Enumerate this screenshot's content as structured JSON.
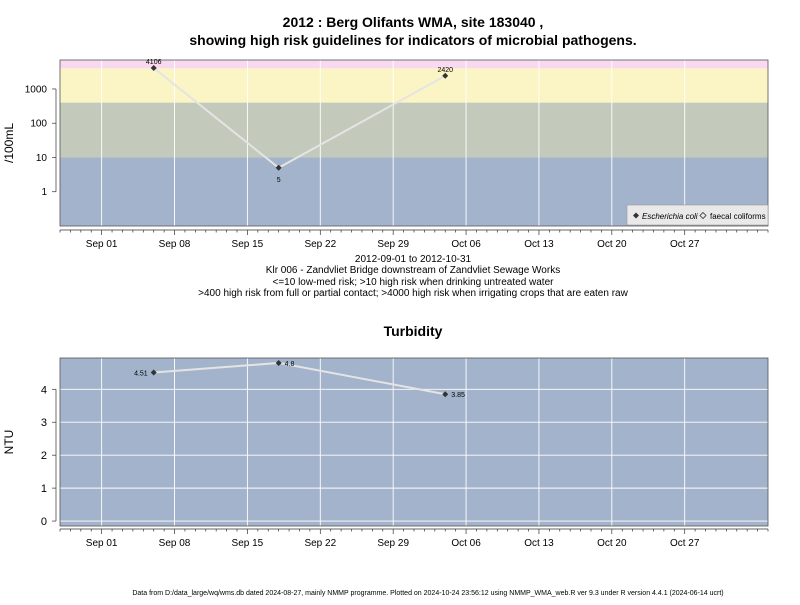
{
  "title_line1": "2012 : Berg Olifants WMA, site 183040 ,",
  "title_line2": "showing high risk guidelines for indicators of microbial pathogens.",
  "info": {
    "date_range": "2012-09-01 to 2012-10-31",
    "site_desc": "Klr 006 - Zandvliet Bridge downstream of Zandvliet Sewage Works",
    "risk_line1": "<=10 low-med risk; >10 high risk when drinking untreated water",
    "risk_line2": ">400 high risk from full or partial contact; >4000 high risk when irrigating crops that are eaten raw"
  },
  "footer": "Data from D:/data_large/wq/wms.db dated 2024-08-27, mainly NMMP programme. Plotted on 2024-10-24 23:56:12 using NMMP_WMA_web.R ver 9.3 under R version 4.4.1 (2024-06-14 ucrt)",
  "colors": {
    "band_low": "#a3b3cb",
    "band_mid": "#c3cabc",
    "band_high": "#fbf4c4",
    "band_top": "#f8d9ef",
    "line": "#e4e4e4",
    "grid": "#ffffff",
    "point": "#333333"
  },
  "chart_data": [
    {
      "type": "line",
      "title": "",
      "xlabel": "",
      "ylabel": "/100mL",
      "yscale": "log",
      "ylim": [
        0.1,
        7000
      ],
      "x_range": [
        "2012-08-28",
        "2012-11-04"
      ],
      "x_ticks": [
        "Sep 01",
        "Sep 08",
        "Sep 15",
        "Sep 22",
        "Sep 29",
        "Oct 06",
        "Oct 13",
        "Oct 20",
        "Oct 27"
      ],
      "x_tick_dates": [
        "2012-09-01",
        "2012-09-08",
        "2012-09-15",
        "2012-09-22",
        "2012-09-29",
        "2012-10-06",
        "2012-10-13",
        "2012-10-20",
        "2012-10-27"
      ],
      "y_ticks": [
        "1",
        "10",
        "100",
        "1000"
      ],
      "y_tick_values": [
        1,
        10,
        100,
        1000
      ],
      "risk_bands": [
        10,
        400,
        4000
      ],
      "grid": true,
      "legend_position": "bottom-right",
      "legend": [
        "Escherichia coli",
        "faecal coliforms"
      ],
      "series": [
        {
          "name": "Escherichia coli",
          "x": [
            "2012-09-06",
            "2012-09-18",
            "2012-10-04"
          ],
          "y": [
            4106,
            5,
            2420
          ],
          "labels": [
            "4106",
            "5",
            "2420"
          ]
        }
      ]
    },
    {
      "type": "line",
      "title": "Turbidity",
      "xlabel": "",
      "ylabel": "NTU",
      "ylim": [
        -0.15,
        4.95
      ],
      "x_range": [
        "2012-08-28",
        "2012-11-04"
      ],
      "x_ticks": [
        "Sep 01",
        "Sep 08",
        "Sep 15",
        "Sep 22",
        "Sep 29",
        "Oct 06",
        "Oct 13",
        "Oct 20",
        "Oct 27"
      ],
      "x_tick_dates": [
        "2012-09-01",
        "2012-09-08",
        "2012-09-15",
        "2012-09-22",
        "2012-09-29",
        "2012-10-06",
        "2012-10-13",
        "2012-10-20",
        "2012-10-27"
      ],
      "y_ticks": [
        "0",
        "1",
        "2",
        "3",
        "4"
      ],
      "y_tick_values": [
        0,
        1,
        2,
        3,
        4
      ],
      "grid": true,
      "series": [
        {
          "x": [
            "2012-09-06",
            "2012-09-18",
            "2012-10-04"
          ],
          "y": [
            4.51,
            4.8,
            3.85
          ],
          "labels": [
            "4.51",
            "4.8",
            "3.85"
          ]
        }
      ]
    }
  ]
}
